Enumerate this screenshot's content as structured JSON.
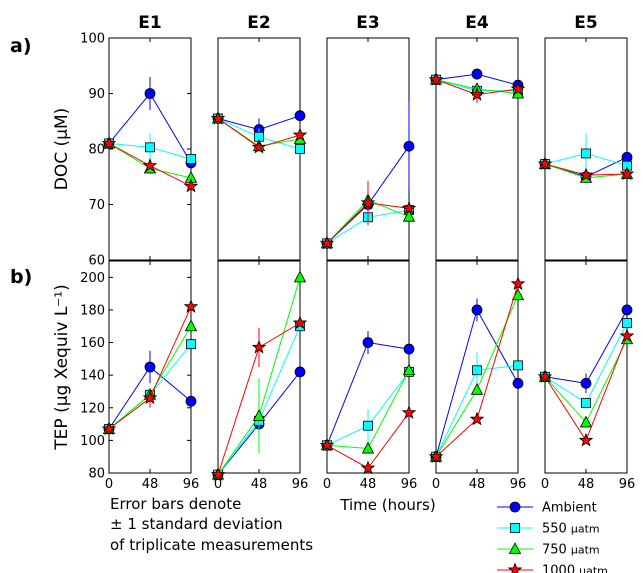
{
  "figure": {
    "row_labels": [
      "a)",
      "b)"
    ],
    "xlabel": "Time (hours)",
    "note_lines": [
      "Error bars denote",
      "± 1 standard deviation",
      "of triplicate measurements"
    ]
  },
  "legend": [
    {
      "key": "ambient",
      "value": "Ambient",
      "unit": "",
      "color": "#0000ff",
      "marker": "circle"
    },
    {
      "key": "p550",
      "value": "550",
      "unit": "µatm",
      "color": "#00ffff",
      "marker": "square"
    },
    {
      "key": "p750",
      "value": "750",
      "unit": "µatm",
      "color": "#00ff00",
      "marker": "triangle"
    },
    {
      "key": "p1000",
      "value": "1000",
      "unit": "µatm",
      "color": "#ff0000",
      "marker": "star"
    }
  ],
  "chart_data": [
    {
      "type": "line",
      "row": "DOC",
      "ylabel": "DOC (µM)",
      "ylim": [
        60,
        100
      ],
      "yticks": [
        60,
        70,
        80,
        90,
        100
      ],
      "x": [
        0,
        48,
        96
      ],
      "xticks": [
        0,
        48,
        96
      ],
      "panels": [
        {
          "title": "E1",
          "series": [
            {
              "key": "ambient",
              "values": [
                81,
                90,
                77.5
              ],
              "errors": [
                0,
                3,
                0
              ]
            },
            {
              "key": "p550",
              "values": [
                81,
                80.3,
                78.2
              ],
              "errors": [
                0,
                2.5,
                0
              ]
            },
            {
              "key": "p750",
              "values": [
                81,
                76.5,
                74.8
              ],
              "errors": [
                0,
                1,
                0
              ]
            },
            {
              "key": "p1000",
              "values": [
                81,
                77,
                73.3
              ],
              "errors": [
                0,
                0,
                0
              ]
            }
          ]
        },
        {
          "title": "E2",
          "series": [
            {
              "key": "ambient",
              "values": [
                85.5,
                83.5,
                86
              ],
              "errors": [
                0,
                2,
                0
              ]
            },
            {
              "key": "p550",
              "values": [
                85.5,
                82.2,
                80
              ],
              "errors": [
                0,
                1.5,
                0
              ]
            },
            {
              "key": "p750",
              "values": [
                85.5,
                80.5,
                81.8
              ],
              "errors": [
                0,
                1,
                0
              ]
            },
            {
              "key": "p1000",
              "values": [
                85.5,
                80.3,
                82.5
              ],
              "errors": [
                0,
                0,
                0
              ]
            }
          ]
        },
        {
          "title": "E3",
          "series": [
            {
              "key": "ambient",
              "values": [
                63,
                70,
                80.5
              ],
              "errors": [
                0,
                1.5,
                8
              ]
            },
            {
              "key": "p550",
              "values": [
                63,
                67.7,
                69
              ],
              "errors": [
                0,
                1.5,
                0
              ]
            },
            {
              "key": "p750",
              "values": [
                63,
                70.8,
                67.8
              ],
              "errors": [
                0,
                3,
                0
              ]
            },
            {
              "key": "p1000",
              "values": [
                63,
                70.3,
                69.3
              ],
              "errors": [
                0,
                4,
                0
              ]
            }
          ]
        },
        {
          "title": "E4",
          "series": [
            {
              "key": "ambient",
              "values": [
                92.5,
                93.5,
                91.5
              ],
              "errors": [
                0,
                1,
                0
              ]
            },
            {
              "key": "p550",
              "values": [
                92.5,
                90.5,
                90.5
              ],
              "errors": [
                0,
                0,
                0
              ]
            },
            {
              "key": "p750",
              "values": [
                92.5,
                90.8,
                90
              ],
              "errors": [
                0,
                1,
                0
              ]
            },
            {
              "key": "p1000",
              "values": [
                92.5,
                89.8,
                90.8
              ],
              "errors": [
                0,
                1.5,
                0
              ]
            }
          ]
        },
        {
          "title": "E5",
          "series": [
            {
              "key": "ambient",
              "values": [
                77.3,
                75,
                78.5
              ],
              "errors": [
                0,
                0,
                0
              ]
            },
            {
              "key": "p550",
              "values": [
                77.3,
                79.2,
                77
              ],
              "errors": [
                0,
                3.5,
                0
              ]
            },
            {
              "key": "p750",
              "values": [
                77.3,
                74.8,
                75.5
              ],
              "errors": [
                0,
                1,
                0
              ]
            },
            {
              "key": "p1000",
              "values": [
                77.3,
                75.3,
                75.5
              ],
              "errors": [
                0,
                0,
                0
              ]
            }
          ]
        }
      ]
    },
    {
      "type": "line",
      "row": "TEP",
      "ylabel": "TEP (µg Xequiv L⁻¹)",
      "ylim": [
        80,
        210
      ],
      "yticks": [
        80,
        100,
        120,
        140,
        160,
        180,
        200
      ],
      "x": [
        0,
        48,
        96
      ],
      "xticks": [
        0,
        48,
        96
      ],
      "panels": [
        {
          "title": "E1",
          "series": [
            {
              "key": "ambient",
              "values": [
                107,
                145,
                124
              ],
              "errors": [
                0,
                10,
                0
              ]
            },
            {
              "key": "p550",
              "values": [
                107,
                128,
                159
              ],
              "errors": [
                0,
                0,
                0
              ]
            },
            {
              "key": "p750",
              "values": [
                107,
                128,
                170
              ],
              "errors": [
                0,
                0,
                0
              ]
            },
            {
              "key": "p1000",
              "values": [
                107,
                126,
                182
              ],
              "errors": [
                0,
                6,
                0
              ]
            }
          ]
        },
        {
          "title": "E2",
          "series": [
            {
              "key": "ambient",
              "values": [
                79,
                110,
                142
              ],
              "errors": [
                0,
                0,
                0
              ]
            },
            {
              "key": "p550",
              "values": [
                79,
                112,
                170
              ],
              "errors": [
                0,
                15,
                0
              ]
            },
            {
              "key": "p750",
              "values": [
                79,
                115,
                200
              ],
              "errors": [
                0,
                23,
                0
              ]
            },
            {
              "key": "p1000",
              "values": [
                79,
                157,
                172
              ],
              "errors": [
                0,
                12,
                0
              ]
            }
          ]
        },
        {
          "title": "E3",
          "series": [
            {
              "key": "ambient",
              "values": [
                97,
                160,
                156
              ],
              "errors": [
                0,
                7,
                0
              ]
            },
            {
              "key": "p550",
              "values": [
                97,
                109,
                142
              ],
              "errors": [
                0,
                10,
                0
              ]
            },
            {
              "key": "p750",
              "values": [
                97,
                95,
                143
              ],
              "errors": [
                0,
                0,
                0
              ]
            },
            {
              "key": "p1000",
              "values": [
                97,
                83,
                117
              ],
              "errors": [
                0,
                0,
                0
              ]
            }
          ]
        },
        {
          "title": "E4",
          "series": [
            {
              "key": "ambient",
              "values": [
                90,
                180,
                135
              ],
              "errors": [
                0,
                7,
                0
              ]
            },
            {
              "key": "p550",
              "values": [
                90,
                143,
                146
              ],
              "errors": [
                0,
                11,
                0
              ]
            },
            {
              "key": "p750",
              "values": [
                90,
                131,
                189
              ],
              "errors": [
                0,
                0,
                0
              ]
            },
            {
              "key": "p1000",
              "values": [
                90,
                113,
                196
              ],
              "errors": [
                0,
                0,
                0
              ]
            }
          ]
        },
        {
          "title": "E5",
          "series": [
            {
              "key": "ambient",
              "values": [
                139,
                135,
                180
              ],
              "errors": [
                0,
                6,
                0
              ]
            },
            {
              "key": "p550",
              "values": [
                139,
                123,
                172
              ],
              "errors": [
                0,
                0,
                0
              ]
            },
            {
              "key": "p750",
              "values": [
                139,
                111,
                162
              ],
              "errors": [
                0,
                0,
                0
              ]
            },
            {
              "key": "p1000",
              "values": [
                139,
                100,
                164
              ],
              "errors": [
                0,
                0,
                0
              ]
            }
          ]
        }
      ]
    }
  ]
}
